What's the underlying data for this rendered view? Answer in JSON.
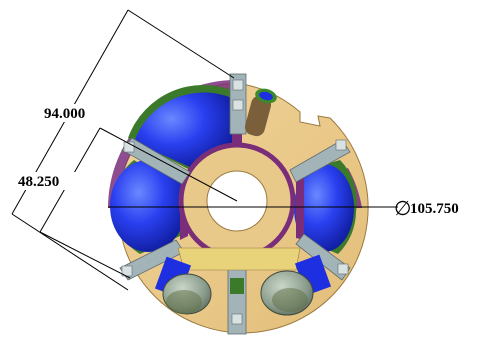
{
  "dimensions": {
    "top_distance": "94.000",
    "inner_distance": "48.250",
    "diameter_symbol": "∅",
    "diameter_value": "105.750"
  },
  "colors": {
    "plate": "#e9c98a",
    "plate_edge": "#9a7a40",
    "ring_purple": "#7a2e7a",
    "wheel_green": "#3b7a2a",
    "wheel_blue": "#1d2fe0",
    "wheel_blue_dark": "#0b1790",
    "wheel_blue_light": "#5b7bff",
    "bracket_grey": "#a3b4b8",
    "motor_silver": "#8a9c8c",
    "motor_olive": "#5f6e44",
    "dim_line": "#000000"
  },
  "components": {
    "reaction_wheels": [
      "wheel-upper-left",
      "wheel-left",
      "wheel-right"
    ],
    "motors": [
      "motor-left",
      "motor-right"
    ],
    "mount_brackets": [
      "bracket-top",
      "bracket-upper-left",
      "bracket-upper-right",
      "bracket-lower-left",
      "bracket-lower-right",
      "bracket-bottom"
    ]
  }
}
